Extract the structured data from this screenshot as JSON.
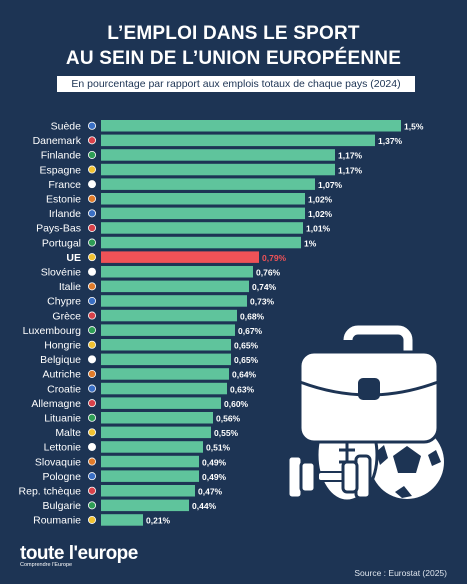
{
  "header": {
    "title_line1": "L’EMPLOI DANS LE SPORT",
    "title_line2": "AU SEIN DE L’UNION EUROPÉENNE",
    "subtitle": "En pourcentage par rapport aux emplois totaux de chaque pays (2024)"
  },
  "footer": {
    "logo_main": "toute l'europe",
    "logo_sub": "Comprendre l'Europe",
    "source": "Source : Eurostat (2025)"
  },
  "colors": {
    "bar": "#5fc49c",
    "highlight": "#ef5257",
    "background": "#1d3454"
  },
  "decoration": {
    "icons": [
      "briefcase-icon",
      "football-icon",
      "soccer-ball-icon",
      "dumbbell-icon"
    ]
  },
  "chart_data": {
    "type": "bar",
    "orientation": "horizontal",
    "highlight_category": "UE",
    "categories": [
      "Suède",
      "Danemark",
      "Finlande",
      "Espagne",
      "France",
      "Estonie",
      "Irlande",
      "Pays-Bas",
      "Portugal",
      "UE",
      "Slovénie",
      "Italie",
      "Chypre",
      "Grèce",
      "Luxembourg",
      "Hongrie",
      "Belgique",
      "Autriche",
      "Croatie",
      "Allemagne",
      "Lituanie",
      "Malte",
      "Lettonie",
      "Slovaquie",
      "Pologne",
      "Rep. tchèque",
      "Bulgarie",
      "Roumanie"
    ],
    "values": [
      1.5,
      1.37,
      1.17,
      1.17,
      1.07,
      1.02,
      1.02,
      1.01,
      1,
      0.79,
      0.76,
      0.74,
      0.73,
      0.68,
      0.67,
      0.65,
      0.65,
      0.64,
      0.63,
      0.6,
      0.56,
      0.55,
      0.51,
      0.49,
      0.49,
      0.47,
      0.44,
      0.21
    ],
    "labels": [
      "1,5%",
      "1,37%",
      "1,17%",
      "1,17%",
      "1,07%",
      "1,02%",
      "1,02%",
      "1,01%",
      "1%",
      "0,79%",
      "0,76%",
      "0,74%",
      "0,73%",
      "0,68%",
      "0,67%",
      "0,65%",
      "0,65%",
      "0,64%",
      "0,63%",
      "0,60%",
      "0,56%",
      "0,55%",
      "0,51%",
      "0,49%",
      "0,49%",
      "0,47%",
      "0,44%",
      "0,21%"
    ],
    "xlim": [
      0,
      1.5
    ],
    "title": "L’EMPLOI DANS LE SPORT AU SEIN DE L’UNION EUROPÉENNE",
    "subtitle": "En pourcentage par rapport aux emplois totaux de chaque pays (2024)"
  }
}
